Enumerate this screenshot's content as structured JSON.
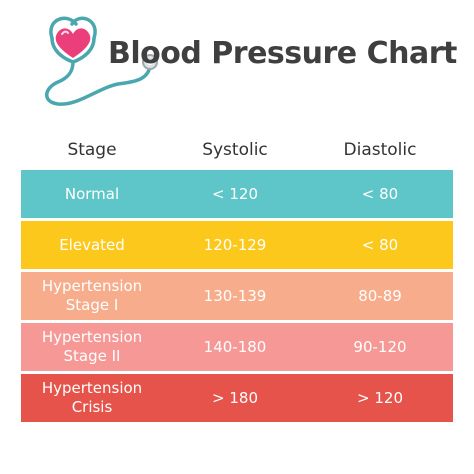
{
  "title": "Blood Pressure Chart",
  "logo_icon": "heart-stethoscope-icon",
  "colors": {
    "heart": "#ea3f7a",
    "stethoscope": "#4aa7b0",
    "normal": "#5ec6c8",
    "elevated": "#fcc81b",
    "stage1": "#f7ad8b",
    "stage2": "#f59896",
    "crisis": "#e5534b"
  },
  "table": {
    "headers": {
      "stage": "Stage",
      "systolic": "Systolic",
      "diastolic": "Diastolic"
    },
    "rows": [
      {
        "stage_line1": "Normal",
        "stage_line2": "",
        "systolic": "< 120",
        "diastolic": "< 80"
      },
      {
        "stage_line1": "Elevated",
        "stage_line2": "",
        "systolic": "120-129",
        "diastolic": "< 80"
      },
      {
        "stage_line1": "Hypertension",
        "stage_line2": "Stage I",
        "systolic": "130-139",
        "diastolic": "80-89"
      },
      {
        "stage_line1": "Hypertension",
        "stage_line2": "Stage II",
        "systolic": "140-180",
        "diastolic": "90-120"
      },
      {
        "stage_line1": "Hypertension",
        "stage_line2": "Crisis",
        "systolic": ">  180",
        "diastolic": ">  120"
      }
    ]
  }
}
